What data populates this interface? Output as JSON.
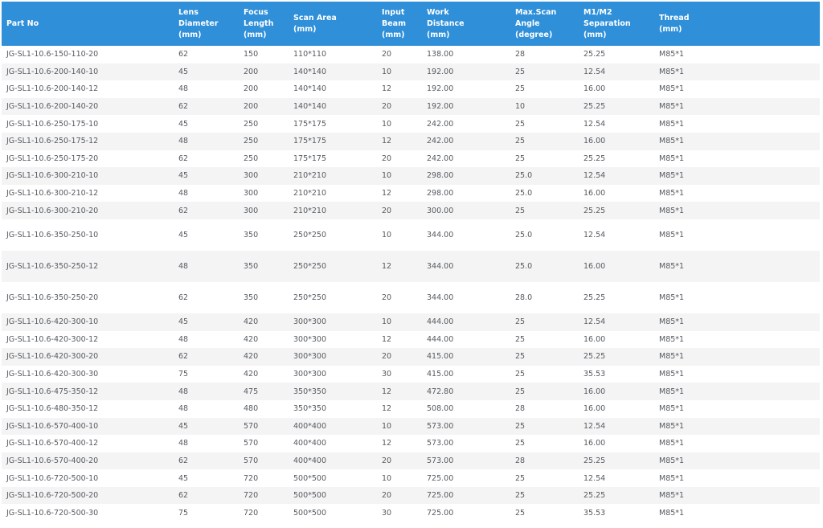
{
  "headers": [
    "Part No",
    "Lens\nDiameter\n(mm)",
    "Focus\nLength\n(mm)",
    "Scan Area\n(mm)",
    "Input\nBeam\n(mm)",
    "Work\nDistance\n(mm)",
    "Max.Scan\nAngle\n(degree)",
    "M1/M2\nSeparation\n(mm)",
    "Thread\n(mm)"
  ],
  "rows": [
    [
      "JG-SL1-10.6-150-110-20",
      "62",
      "150",
      "110*110",
      "20",
      "138.00",
      "28",
      "25.25",
      "M85*1"
    ],
    [
      "JG-SL1-10.6-200-140-10",
      "45",
      "200",
      "140*140",
      "10",
      "192.00",
      "25",
      "12.54",
      "M85*1"
    ],
    [
      "JG-SL1-10.6-200-140-12",
      "48",
      "200",
      "140*140",
      "12",
      "192.00",
      "25",
      "16.00",
      "M85*1"
    ],
    [
      "JG-SL1-10.6-200-140-20",
      "62",
      "200",
      "140*140",
      "20",
      "192.00",
      "10",
      "25.25",
      "M85*1"
    ],
    [
      "JG-SL1-10.6-250-175-10",
      "45",
      "250",
      "175*175",
      "10",
      "242.00",
      "25",
      "12.54",
      "M85*1"
    ],
    [
      "JG-SL1-10.6-250-175-12",
      "48",
      "250",
      "175*175",
      "12",
      "242.00",
      "25",
      "16.00",
      "M85*1"
    ],
    [
      "JG-SL1-10.6-250-175-20",
      "62",
      "250",
      "175*175",
      "20",
      "242.00",
      "25",
      "25.25",
      "M85*1"
    ],
    [
      "JG-SL1-10.6-300-210-10",
      "45",
      "300",
      "210*210",
      "10",
      "298.00",
      "25.0",
      "12.54",
      "M85*1"
    ],
    [
      "JG-SL1-10.6-300-210-12",
      "48",
      "300",
      "210*210",
      "12",
      "298.00",
      "25.0",
      "16.00",
      "M85*1"
    ],
    [
      "JG-SL1-10.6-300-210-20",
      "62",
      "300",
      "210*210",
      "20",
      "300.00",
      "25",
      "25.25",
      "M85*1"
    ],
    [
      "JG-SL1-10.6-350-250-10",
      "45",
      "350",
      "250*250",
      "10",
      "344.00",
      "25.0",
      "12.54",
      "M85*1"
    ],
    [
      "JG-SL1-10.6-350-250-12",
      "48",
      "350",
      "250*250",
      "12",
      "344.00",
      "25.0",
      "16.00",
      "M85*1"
    ],
    [
      "JG-SL1-10.6-350-250-20",
      "62",
      "350",
      "250*250",
      "20",
      "344.00",
      "28.0",
      "25.25",
      "M85*1"
    ],
    [
      "JG-SL1-10.6-420-300-10",
      "45",
      "420",
      "300*300",
      "10",
      "444.00",
      "25",
      "12.54",
      "M85*1"
    ],
    [
      "JG-SL1-10.6-420-300-12",
      "48",
      "420",
      "300*300",
      "12",
      "444.00",
      "25",
      "16.00",
      "M85*1"
    ],
    [
      "JG-SL1-10.6-420-300-20",
      "62",
      "420",
      "300*300",
      "20",
      "415.00",
      "25",
      "25.25",
      "M85*1"
    ],
    [
      "JG-SL1-10.6-420-300-30",
      "75",
      "420",
      "300*300",
      "30",
      "415.00",
      "25",
      "35.53",
      "M85*1"
    ],
    [
      "JG-SL1-10.6-475-350-12",
      "48",
      "475",
      "350*350",
      "12",
      "472.80",
      "25",
      "16.00",
      "M85*1"
    ],
    [
      "JG-SL1-10.6-480-350-12",
      "48",
      "480",
      "350*350",
      "12",
      "508.00",
      "28",
      "16.00",
      "M85*1"
    ],
    [
      "JG-SL1-10.6-570-400-10",
      "45",
      "570",
      "400*400",
      "10",
      "573.00",
      "25",
      "12.54",
      "M85*1"
    ],
    [
      "JG-SL1-10.6-570-400-12",
      "48",
      "570",
      "400*400",
      "12",
      "573.00",
      "25",
      "16.00",
      "M85*1"
    ],
    [
      "JG-SL1-10.6-570-400-20",
      "62",
      "570",
      "400*400",
      "20",
      "573.00",
      "28",
      "25.25",
      "M85*1"
    ],
    [
      "JG-SL1-10.6-720-500-10",
      "45",
      "720",
      "500*500",
      "10",
      "725.00",
      "25",
      "12.54",
      "M85*1"
    ],
    [
      "JG-SL1-10.6-720-500-20",
      "62",
      "720",
      "500*500",
      "20",
      "725.00",
      "25",
      "25.25",
      "M85*1"
    ],
    [
      "JG-SL1-10.6-720-500-30",
      "75",
      "720",
      "500*500",
      "30",
      "725.00",
      "25",
      "35.53",
      "M85*1"
    ]
  ]
}
